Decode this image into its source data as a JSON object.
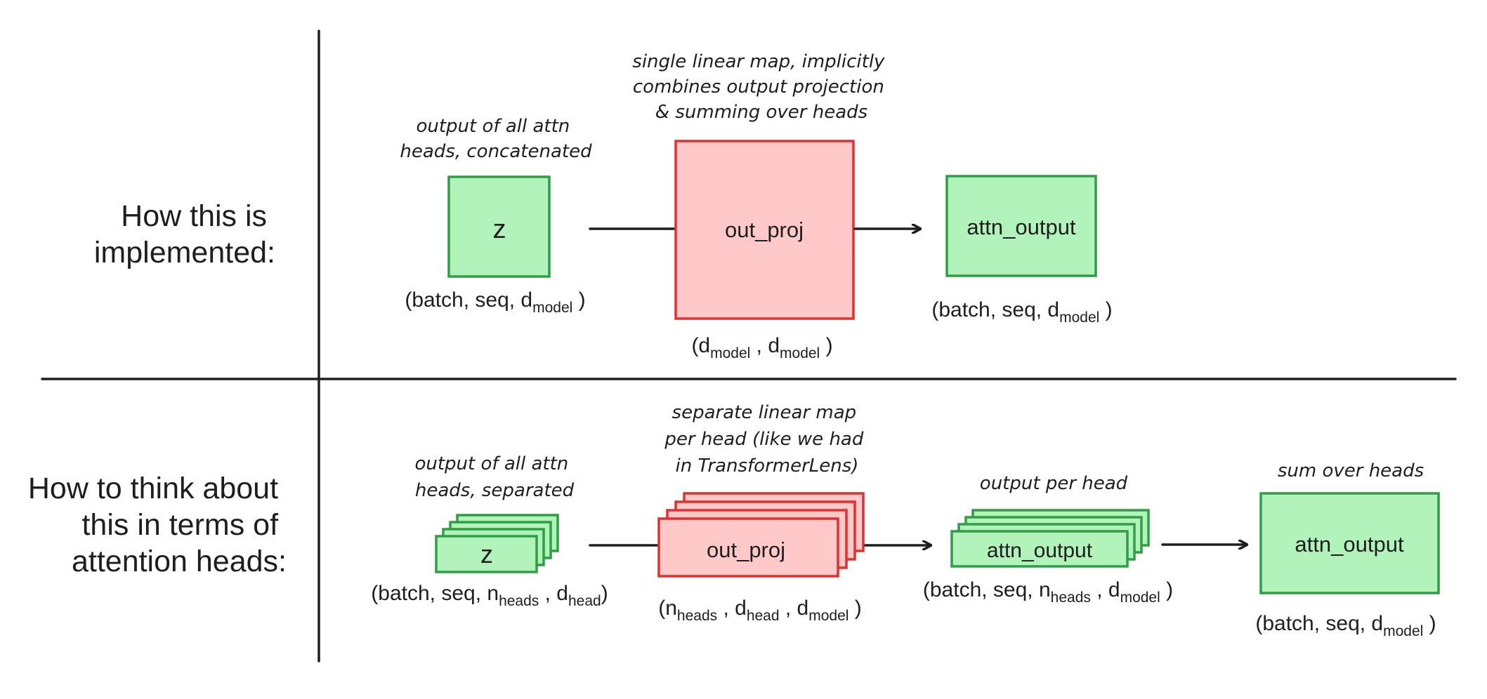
{
  "rows": {
    "implemented": {
      "label_line1": "How this is",
      "label_line2": "implemented:"
    },
    "heads": {
      "label_line1": "How to think about",
      "label_line2": "this in terms of",
      "label_line3": "attention heads:"
    }
  },
  "top": {
    "z_box": "z",
    "z_note_line1": "output of all attn",
    "z_note_line2": "heads, concatenated",
    "z_shape": {
      "prefix": "(batch, seq, d",
      "sub": "model",
      "suffix": " )"
    },
    "proj_box": "out_proj",
    "proj_note_line1": "single linear map, implicitly",
    "proj_note_line2": "combines output projection",
    "proj_note_line3": "& summing over heads",
    "proj_shape": {
      "p1": "(d",
      "s1": "model",
      "p2": " , d",
      "s2": "model",
      "p3": " )"
    },
    "out_box": "attn_output",
    "out_shape": {
      "prefix": "(batch, seq, d",
      "sub": "model",
      "suffix": " )"
    }
  },
  "bottom": {
    "z_box": "z",
    "z_note_line1": "output of all attn",
    "z_note_line2": "heads, separated",
    "z_shape": {
      "p1": "(batch, seq, n",
      "s1": "heads",
      "p2": " , d",
      "s2": "head",
      "p3": ")"
    },
    "proj_box": "out_proj",
    "proj_note_line1": "separate linear map",
    "proj_note_line2": "per head (like we had",
    "proj_note_line3": "in TransformerLens)",
    "proj_shape": {
      "p1": "(n",
      "s1": "heads",
      "p2": " , d",
      "s2": "head",
      "p3": " , d",
      "s3": "model",
      "p4": " )"
    },
    "head_out_box": "attn_output",
    "head_out_note": "output per head",
    "head_out_shape": {
      "p1": "(batch, seq, n",
      "s1": "heads",
      "p2": " , d",
      "s2": "model",
      "p3": " )"
    },
    "sum_box": "attn_output",
    "sum_note": "sum over heads",
    "sum_shape": {
      "prefix": "(batch, seq, d",
      "sub": "model",
      "suffix": " )"
    }
  },
  "colors": {
    "green_fill": "#b2f2bb",
    "green_stroke": "#2f9e44",
    "red_fill": "#ffc9c9",
    "red_stroke": "#e03131",
    "ink": "#1e1e1e"
  }
}
